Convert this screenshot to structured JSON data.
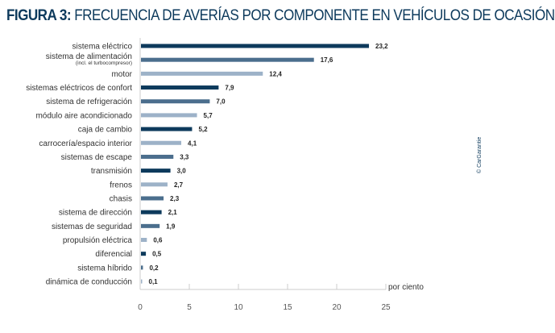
{
  "title_prefix": "FIGURA 3:",
  "title_text": "FRECUENCIA DE AVERÍAS POR COMPONENTE EN VEHÍCULOS DE OCASIÓN",
  "copyright": "© CarGarantie",
  "colors": {
    "dark": "#0d3a5c",
    "mid": "#4b6e8d",
    "light": "#9db2c8"
  },
  "chart_data": {
    "type": "bar",
    "orientation": "horizontal",
    "title": "FIGURA 3: FRECUENCIA DE AVERÍAS POR COMPONENTE EN VEHÍCULOS DE OCASIÓN",
    "xlabel": "por ciento",
    "xlim": [
      0,
      25
    ],
    "xticks": [
      0,
      5,
      10,
      15,
      20,
      25
    ],
    "grid": false,
    "categories": [
      "sistema eléctrico",
      "sistema de alimentación",
      "motor",
      "sistemas eléctricos de confort",
      "sistema de refrigeración",
      "módulo aire acondicionado",
      "caja de cambio",
      "carrocería/espacio interior",
      "sistemas de escape",
      "transmisión",
      "frenos",
      "chasis",
      "sistema de dirección",
      "sistemas de seguridad",
      "propulsión eléctrica",
      "diferencial",
      "sistema híbrido",
      "dinámica de conducción"
    ],
    "category_notes": {
      "1": "(incl. el turbocompresor)"
    },
    "values": [
      23.2,
      17.6,
      12.4,
      7.9,
      7.0,
      5.7,
      5.2,
      4.1,
      3.3,
      3.0,
      2.7,
      2.3,
      2.1,
      1.9,
      0.6,
      0.5,
      0.2,
      0.1
    ],
    "value_labels": [
      "23,2",
      "17,6",
      "12,4",
      "7,9",
      "7,0",
      "5,7",
      "5,2",
      "4,1",
      "3,3",
      "3,0",
      "2,7",
      "2,3",
      "2,1",
      "1,9",
      "0,6",
      "0,5",
      "0,2",
      "0,1"
    ],
    "bar_colors": [
      "dark",
      "mid",
      "light",
      "dark",
      "mid",
      "light",
      "dark",
      "light",
      "mid",
      "dark",
      "light",
      "mid",
      "dark",
      "mid",
      "light",
      "dark",
      "mid",
      "light"
    ]
  }
}
